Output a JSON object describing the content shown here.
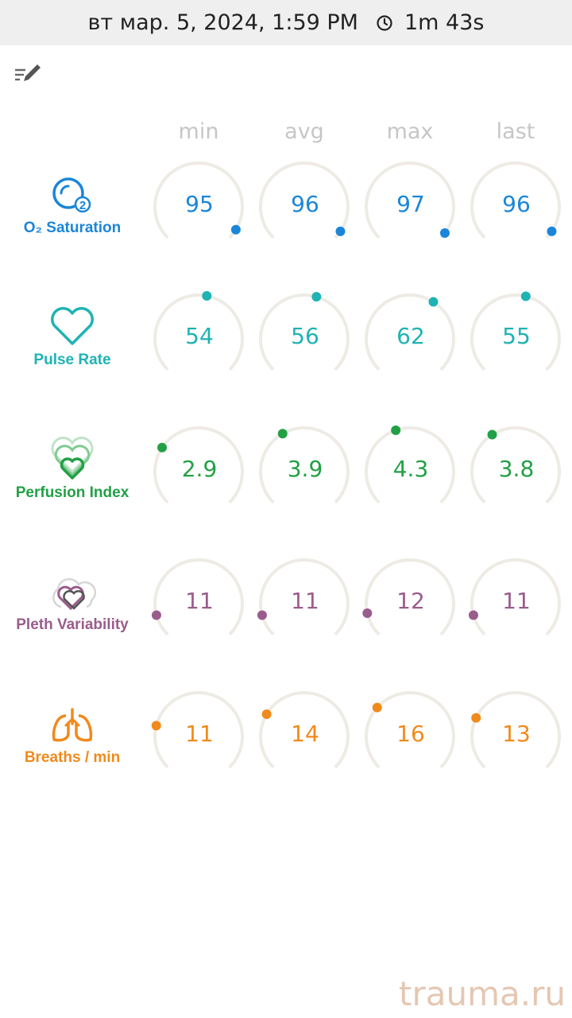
{
  "status_bar": {
    "datetime": "вт мар. 5, 2024, 1:59 PM",
    "duration": "1m 43s"
  },
  "icons": {
    "edit": "edit-list-icon",
    "clock": "clock-icon"
  },
  "columns": [
    "min",
    "avg",
    "max",
    "last"
  ],
  "rows": [
    {
      "name": "O₂ Saturation",
      "icon": "o2-saturation-icon",
      "color": "#1a86d9",
      "values": [
        "95",
        "96",
        "97",
        "96"
      ],
      "levels": [
        0.95,
        0.96,
        0.97,
        0.96
      ]
    },
    {
      "name": "Pulse Rate",
      "icon": "heart-icon",
      "color": "#1fb3b3",
      "values": [
        "54",
        "56",
        "62",
        "55"
      ],
      "levels": [
        0.54,
        0.56,
        0.62,
        0.55
      ]
    },
    {
      "name": "Perfusion Index",
      "icon": "layered-hearts-icon",
      "color": "#22a045",
      "values": [
        "2.9",
        "3.9",
        "4.3",
        "3.8"
      ],
      "levels": [
        0.29,
        0.39,
        0.43,
        0.38
      ]
    },
    {
      "name": "Pleth Variability",
      "icon": "pleth-variability-icon",
      "color": "#9a5c8c",
      "values": [
        "11",
        "11",
        "12",
        "11"
      ],
      "levels": [
        0.11,
        0.11,
        0.12,
        0.11
      ]
    },
    {
      "name": "Breaths / min",
      "icon": "lungs-icon",
      "color": "#f08a1c",
      "values": [
        "11",
        "14",
        "16",
        "13"
      ],
      "levels": [
        0.22,
        0.28,
        0.32,
        0.26
      ]
    }
  ],
  "watermark": "trauma.ru"
}
